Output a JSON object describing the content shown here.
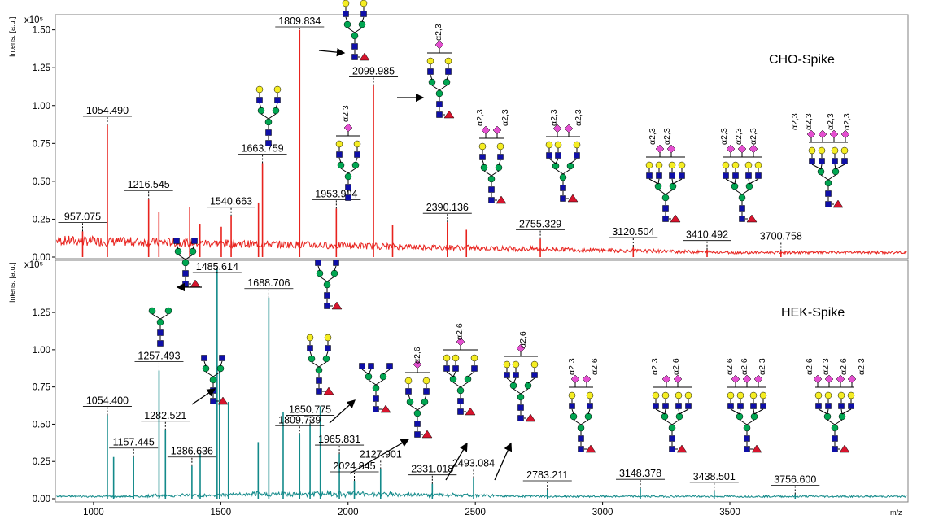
{
  "chart_data": [
    {
      "type": "line",
      "title": "CHO-Spike",
      "ylabel": "Intens. [a.u.]",
      "xlabel": "m/z",
      "y_multiplier": "x10⁵",
      "color": "#e8231e",
      "xlim": [
        850,
        4200
      ],
      "ylim": [
        0,
        1.6
      ],
      "y_ticks": [
        "0.00",
        "0.25",
        "0.50",
        "0.75",
        "1.00",
        "1.25",
        "1.50"
      ],
      "peaks": [
        {
          "x": 957.075,
          "y": 0.17,
          "label": "957.075",
          "labeled": true
        },
        {
          "x": 1054.49,
          "y": 0.87,
          "label": "1054.490",
          "labeled": true
        },
        {
          "x": 1216.545,
          "y": 0.38,
          "label": "1216.545",
          "labeled": true
        },
        {
          "x": 1257,
          "y": 0.3,
          "labeled": false
        },
        {
          "x": 1378,
          "y": 0.33,
          "labeled": false
        },
        {
          "x": 1418,
          "y": 0.22,
          "labeled": false
        },
        {
          "x": 1540.663,
          "y": 0.27,
          "label": "1540.663",
          "labeled": true
        },
        {
          "x": 1502,
          "y": 0.2,
          "labeled": false
        },
        {
          "x": 1648,
          "y": 0.36,
          "labeled": false
        },
        {
          "x": 1663.759,
          "y": 0.62,
          "label": "1663.759",
          "labeled": true
        },
        {
          "x": 1809.834,
          "y": 1.5,
          "label": "1809.834",
          "labeled": true
        },
        {
          "x": 1953.904,
          "y": 0.32,
          "label": "1953.904",
          "labeled": true
        },
        {
          "x": 2099.985,
          "y": 1.13,
          "label": "2099.985",
          "labeled": true
        },
        {
          "x": 2175,
          "y": 0.21,
          "labeled": false
        },
        {
          "x": 2390.136,
          "y": 0.23,
          "label": "2390.136",
          "labeled": true
        },
        {
          "x": 2465,
          "y": 0.18,
          "labeled": false
        },
        {
          "x": 2755.329,
          "y": 0.12,
          "label": "2755.329",
          "labeled": true
        },
        {
          "x": 3120.504,
          "y": 0.07,
          "label": "3120.504",
          "labeled": true
        },
        {
          "x": 3410.492,
          "y": 0.05,
          "label": "3410.492",
          "labeled": true
        },
        {
          "x": 3700.758,
          "y": 0.04,
          "label": "3700.758",
          "labeled": true
        }
      ],
      "annotations": [
        "α2,3",
        "α2,3",
        "α2,3",
        "α2,3",
        "α2,3",
        "α2,3",
        "α2,3",
        "α2,3",
        "α2,3",
        "α2,3",
        "α2,3",
        "α2,3",
        "α2,3",
        "α2,3",
        "α2,3"
      ]
    },
    {
      "type": "line",
      "title": "HEK-Spike",
      "ylabel": "Intens. [a.u.]",
      "xlabel": "m/z",
      "y_multiplier": "x10⁵",
      "color": "#138a8a",
      "xlim": [
        850,
        4200
      ],
      "ylim": [
        0,
        1.6
      ],
      "y_ticks": [
        "0.00",
        "0.25",
        "0.50",
        "0.75",
        "1.00",
        "1.25"
      ],
      "x_ticks": [
        "1000",
        "1500",
        "2000",
        "2500",
        "3000",
        "3500"
      ],
      "peaks": [
        {
          "x": 1054.4,
          "y": 0.56,
          "label": "1054.400",
          "labeled": true
        },
        {
          "x": 1079,
          "y": 0.28,
          "labeled": false
        },
        {
          "x": 1157.445,
          "y": 0.28,
          "label": "1157.445",
          "labeled": true
        },
        {
          "x": 1257.493,
          "y": 0.86,
          "label": "1257.493",
          "labeled": true
        },
        {
          "x": 1282.521,
          "y": 0.46,
          "label": "1282.521",
          "labeled": true
        },
        {
          "x": 1386.636,
          "y": 0.22,
          "label": "1386.636",
          "labeled": true
        },
        {
          "x": 1419,
          "y": 0.3,
          "labeled": false
        },
        {
          "x": 1485.614,
          "y": 1.55,
          "label": "1485.614",
          "labeled": true
        },
        {
          "x": 1495,
          "y": 0.88,
          "labeled": false
        },
        {
          "x": 1530,
          "y": 0.65,
          "labeled": false
        },
        {
          "x": 1647,
          "y": 0.38,
          "labeled": false
        },
        {
          "x": 1688.706,
          "y": 1.35,
          "label": "1688.706",
          "labeled": true
        },
        {
          "x": 1745,
          "y": 0.58,
          "labeled": false
        },
        {
          "x": 1809.739,
          "y": 0.43,
          "label": "1809.739",
          "labeled": true
        },
        {
          "x": 1850.775,
          "y": 0.5,
          "label": "1850.775",
          "labeled": true
        },
        {
          "x": 1891,
          "y": 0.62,
          "labeled": false
        },
        {
          "x": 1965.831,
          "y": 0.3,
          "label": "1965.831",
          "labeled": true
        },
        {
          "x": 2024.845,
          "y": 0.12,
          "label": "2024.845",
          "labeled": true
        },
        {
          "x": 2127.901,
          "y": 0.2,
          "label": "2127.901",
          "labeled": true
        },
        {
          "x": 2331.018,
          "y": 0.1,
          "label": "2331.018",
          "labeled": true
        },
        {
          "x": 2493.084,
          "y": 0.14,
          "label": "2493.084",
          "labeled": true
        },
        {
          "x": 2783.211,
          "y": 0.06,
          "label": "2783.211",
          "labeled": true
        },
        {
          "x": 3148.378,
          "y": 0.07,
          "label": "3148.378",
          "labeled": true
        },
        {
          "x": 3438.501,
          "y": 0.05,
          "label": "3438.501",
          "labeled": true
        },
        {
          "x": 3756.6,
          "y": 0.03,
          "label": "3756.600",
          "labeled": true
        }
      ],
      "annotations": [
        "α2,6",
        "α2,6",
        "α2,6",
        "α2,3",
        "α2,6",
        "α2,3",
        "α2,6",
        "α2,6",
        "α2,6",
        "α2,3",
        "α2,6",
        "α2,3",
        "α2,6",
        "α2,3"
      ]
    }
  ],
  "colors": {
    "cho": "#e8231e",
    "hek": "#138a8a",
    "mannose": "#00a651",
    "glcnac": "#0f0fa8",
    "galactose": "#f5ed23",
    "sialic": "#e44fd0",
    "fucose": "#d7142d"
  },
  "icons": {
    "glycan": "glycan-structure-icon",
    "arrow": "arrow-icon"
  }
}
